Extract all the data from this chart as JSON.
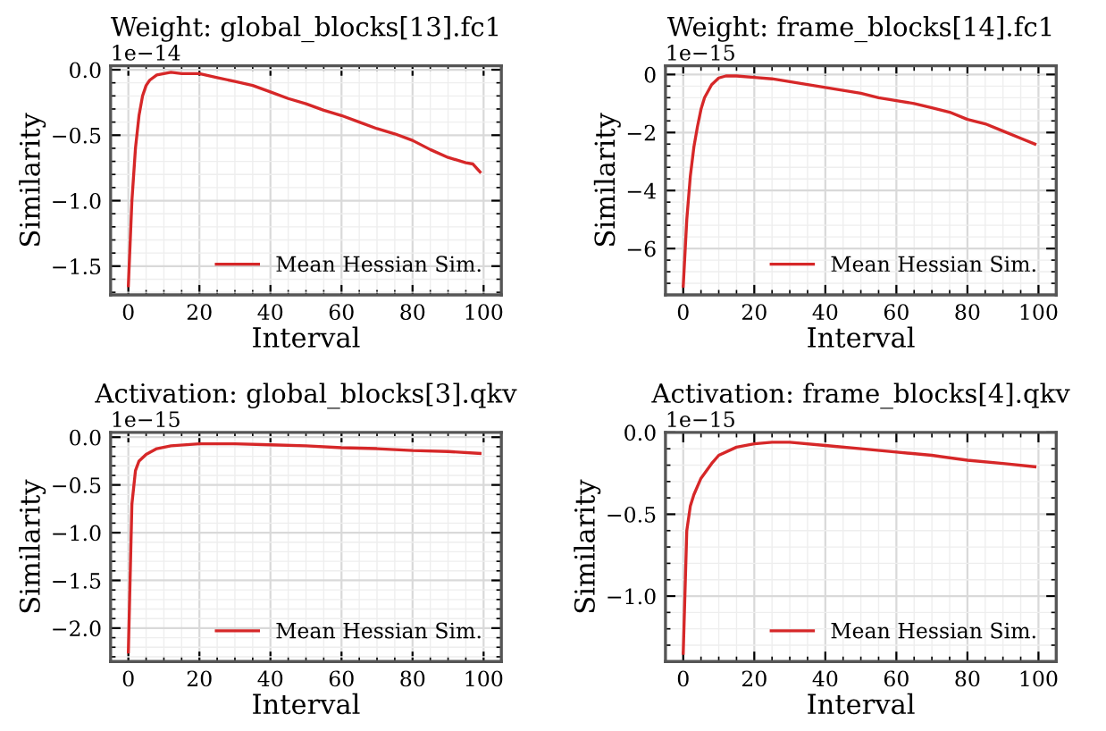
{
  "chart_data": [
    {
      "type": "line",
      "title": "Weight: global_blocks[13].fc1",
      "xlabel": "Interval",
      "ylabel": "Similarity",
      "annotations": [
        "1e−14"
      ],
      "grid": true,
      "legend": "bottom right",
      "xlim": [
        -5,
        105
      ],
      "xticks": [
        0,
        20,
        40,
        60,
        80,
        100
      ],
      "ylim": [
        -1.72,
        0.03
      ],
      "yticks": [
        {
          "value": 0,
          "label": "0.0"
        },
        {
          "value": -0.5,
          "label": "−0.5"
        },
        {
          "value": -1.0,
          "label": "−1.0"
        },
        {
          "value": -1.5,
          "label": "−1.5"
        }
      ],
      "series": [
        {
          "name": "Mean Hessian Sim.",
          "color": "#d62728",
          "x": [
            0,
            1,
            2,
            3,
            4,
            5,
            6,
            8,
            10,
            12,
            15,
            20,
            25,
            30,
            35,
            40,
            45,
            50,
            55,
            60,
            65,
            70,
            75,
            80,
            85,
            90,
            95,
            97,
            99
          ],
          "values": [
            -1.65,
            -1.0,
            -0.6,
            -0.35,
            -0.2,
            -0.12,
            -0.08,
            -0.04,
            -0.03,
            -0.02,
            -0.03,
            -0.03,
            -0.06,
            -0.09,
            -0.12,
            -0.17,
            -0.22,
            -0.26,
            -0.31,
            -0.35,
            -0.4,
            -0.45,
            -0.49,
            -0.54,
            -0.61,
            -0.67,
            -0.71,
            -0.72,
            -0.78
          ]
        }
      ]
    },
    {
      "type": "line",
      "title": "Weight: frame_blocks[14].fc1",
      "xlabel": "Interval",
      "ylabel": "Similarity",
      "annotations": [
        "1e−15"
      ],
      "grid": true,
      "legend": "bottom right",
      "xlim": [
        -5,
        105
      ],
      "xticks": [
        0,
        20,
        40,
        60,
        80,
        100
      ],
      "ylim": [
        -7.6,
        0.3
      ],
      "yticks": [
        0,
        {
          "value": -2,
          "label": "−2"
        },
        {
          "value": -4,
          "label": "−4"
        },
        {
          "value": -6,
          "label": "−6"
        }
      ],
      "series": [
        {
          "name": "Mean Hessian Sim.",
          "color": "#d62728",
          "x": [
            0,
            1,
            2,
            3,
            4,
            5,
            6,
            8,
            10,
            12,
            15,
            20,
            25,
            30,
            35,
            40,
            45,
            50,
            55,
            60,
            65,
            70,
            75,
            80,
            85,
            90,
            95,
            99
          ],
          "values": [
            -7.3,
            -5.0,
            -3.5,
            -2.5,
            -1.8,
            -1.2,
            -0.8,
            -0.35,
            -0.12,
            -0.05,
            -0.05,
            -0.1,
            -0.15,
            -0.25,
            -0.35,
            -0.45,
            -0.55,
            -0.65,
            -0.8,
            -0.9,
            -1.0,
            -1.15,
            -1.3,
            -1.55,
            -1.7,
            -1.95,
            -2.2,
            -2.4
          ]
        }
      ]
    },
    {
      "type": "line",
      "title": "Activation: global_blocks[3].qkv",
      "xlabel": "Interval",
      "ylabel": "Similarity",
      "annotations": [
        "1e−15"
      ],
      "grid": true,
      "legend": "bottom right",
      "xlim": [
        -5,
        105
      ],
      "xticks": [
        0,
        20,
        40,
        60,
        80,
        100
      ],
      "ylim": [
        -2.35,
        0.05
      ],
      "yticks": [
        {
          "value": 0,
          "label": "0.0"
        },
        {
          "value": -0.5,
          "label": "−0.5"
        },
        {
          "value": -1.0,
          "label": "−1.0"
        },
        {
          "value": -1.5,
          "label": "−1.5"
        },
        {
          "value": -2.0,
          "label": "−2.0"
        }
      ],
      "series": [
        {
          "name": "Mean Hessian Sim.",
          "color": "#d62728",
          "x": [
            0,
            1,
            2,
            3,
            5,
            8,
            12,
            20,
            30,
            40,
            50,
            60,
            70,
            80,
            90,
            99
          ],
          "values": [
            -2.25,
            -0.7,
            -0.35,
            -0.25,
            -0.18,
            -0.12,
            -0.09,
            -0.07,
            -0.07,
            -0.08,
            -0.09,
            -0.11,
            -0.12,
            -0.14,
            -0.15,
            -0.17
          ]
        }
      ]
    },
    {
      "type": "line",
      "title": "Activation: frame_blocks[4].qkv",
      "xlabel": "Interval",
      "ylabel": "Similarity",
      "annotations": [
        "1e−15"
      ],
      "grid": true,
      "legend": "bottom right",
      "xlim": [
        -5,
        105
      ],
      "xticks": [
        0,
        20,
        40,
        60,
        80,
        100
      ],
      "ylim": [
        -1.4,
        0.0
      ],
      "yticks": [
        {
          "value": 0,
          "label": "0.0"
        },
        {
          "value": -0.5,
          "label": "−0.5"
        },
        {
          "value": -1.0,
          "label": "−1.0"
        }
      ],
      "series": [
        {
          "name": "Mean Hessian Sim.",
          "color": "#d62728",
          "x": [
            0,
            1,
            2,
            3,
            5,
            8,
            10,
            15,
            20,
            25,
            30,
            40,
            50,
            60,
            70,
            80,
            90,
            99
          ],
          "values": [
            -1.35,
            -0.6,
            -0.45,
            -0.38,
            -0.28,
            -0.19,
            -0.14,
            -0.09,
            -0.07,
            -0.06,
            -0.06,
            -0.08,
            -0.1,
            -0.12,
            -0.14,
            -0.17,
            -0.19,
            -0.21
          ]
        }
      ]
    }
  ]
}
